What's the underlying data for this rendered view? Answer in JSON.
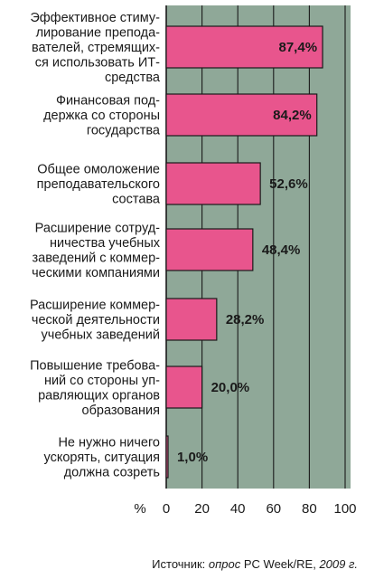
{
  "chart_data": {
    "type": "bar",
    "orientation": "horizontal",
    "categories": [
      [
        "Эффективное стиму-",
        "лирование препода-",
        "вателей, стремящих-",
        "ся использовать ИТ-",
        "средства"
      ],
      [
        "Финансовая под-",
        "держка со стороны",
        "государства"
      ],
      [
        "Общее омоложение",
        "преподавательского",
        "состава"
      ],
      [
        "Расширение сотруд-",
        "ничества учебных",
        "заведений с коммер-",
        "ческими компаниями"
      ],
      [
        "Расширение коммер-",
        "ческой деятельности",
        "учебных заведений"
      ],
      [
        "Повышение требова-",
        "ний со стороны уп-",
        "равляющих органов",
        "образования"
      ],
      [
        "Не нужно ничего",
        "ускорять, ситуация",
        "должна созреть"
      ]
    ],
    "values": [
      87.4,
      84.2,
      52.6,
      48.4,
      28.2,
      20.0,
      1.0
    ],
    "value_labels": [
      "87,4%",
      "84,2%",
      "52,6%",
      "48,4%",
      "28,2%",
      "20,0%",
      "1,0%"
    ],
    "x_ticks": [
      "0",
      "20",
      "40",
      "60",
      "80",
      "100"
    ],
    "xlim": [
      0,
      100
    ],
    "axis_unit": "%",
    "source": {
      "prefix": "Источник: ",
      "italic1": "опрос",
      "middle": " PC Week/RE, ",
      "italic2": "2009 г."
    },
    "colors": {
      "plot_bg": "#8fa898",
      "bar_fill": "#e8558d",
      "bar_stroke": "#1a1a1a",
      "grid": "#1a1a1a"
    }
  }
}
